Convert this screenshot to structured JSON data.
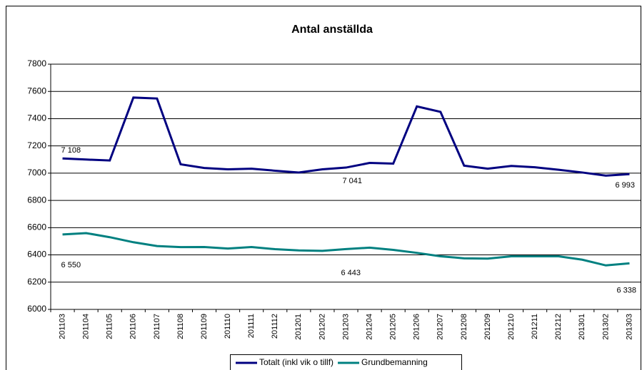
{
  "chart_data": {
    "type": "line",
    "title": "Antal anställda",
    "categories": [
      "201103",
      "201104",
      "201105",
      "201106",
      "201107",
      "201108",
      "201109",
      "201110",
      "201111",
      "201112",
      "201201",
      "201202",
      "201203",
      "201204",
      "201205",
      "201206",
      "201207",
      "201208",
      "201209",
      "201210",
      "201211",
      "201212",
      "201301",
      "201302",
      "201303"
    ],
    "series": [
      {
        "name": "Totalt (inkl vik o tillf)",
        "color": "#000080",
        "values": [
          7108,
          7100,
          7093,
          7555,
          7548,
          7065,
          7038,
          7028,
          7033,
          7018,
          7005,
          7028,
          7041,
          7075,
          7070,
          7490,
          7450,
          7055,
          7033,
          7053,
          7043,
          7025,
          7005,
          6982,
          6993
        ],
        "value_labels": [
          "7 108",
          null,
          null,
          null,
          null,
          null,
          null,
          null,
          null,
          null,
          null,
          null,
          "7 041",
          null,
          null,
          null,
          null,
          null,
          null,
          null,
          null,
          null,
          null,
          null,
          "6 993"
        ]
      },
      {
        "name": "Grundbemanning",
        "color": "#008080",
        "values": [
          6550,
          6560,
          6530,
          6493,
          6465,
          6457,
          6458,
          6447,
          6458,
          6442,
          6433,
          6430,
          6443,
          6453,
          6437,
          6415,
          6390,
          6375,
          6373,
          6390,
          6390,
          6390,
          6365,
          6323,
          6338
        ],
        "value_labels": [
          "6 550",
          null,
          null,
          null,
          null,
          null,
          null,
          null,
          null,
          null,
          null,
          null,
          "6 443",
          null,
          null,
          null,
          null,
          null,
          null,
          null,
          null,
          null,
          null,
          null,
          "6 338"
        ]
      }
    ],
    "ylim": [
      6000,
      7800
    ],
    "yticks": [
      6000,
      6200,
      6400,
      6600,
      6800,
      7000,
      7200,
      7400,
      7600,
      7800
    ],
    "grid": true,
    "legend": "bottom"
  }
}
